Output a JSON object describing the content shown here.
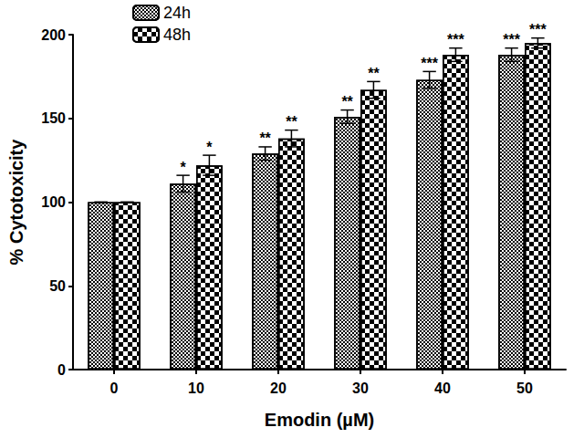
{
  "chart_data": {
    "type": "bar",
    "x_label": "Emodin (µM)",
    "y_label": "% Cytotoxicity",
    "categories": [
      "0",
      "10",
      "20",
      "30",
      "40",
      "50"
    ],
    "series": [
      {
        "name": "24h",
        "color": "#ffffff",
        "values": [
          100,
          111,
          129,
          151,
          173,
          188
        ],
        "errors": [
          0,
          5,
          4,
          4,
          5,
          4
        ],
        "significance": [
          null,
          "*",
          "**",
          "**",
          "***",
          "***"
        ]
      },
      {
        "name": "48h",
        "color": "#ffffff",
        "values": [
          100,
          122,
          138,
          167,
          188,
          195
        ],
        "errors": [
          0,
          6,
          5,
          5,
          4,
          3
        ],
        "significance": [
          null,
          "*",
          "**",
          "**",
          "***",
          "***"
        ]
      }
    ],
    "ylim": [
      0,
      200
    ],
    "yticks": [
      0,
      50,
      100,
      150,
      200
    ],
    "grid": false,
    "legend": "upper left"
  }
}
